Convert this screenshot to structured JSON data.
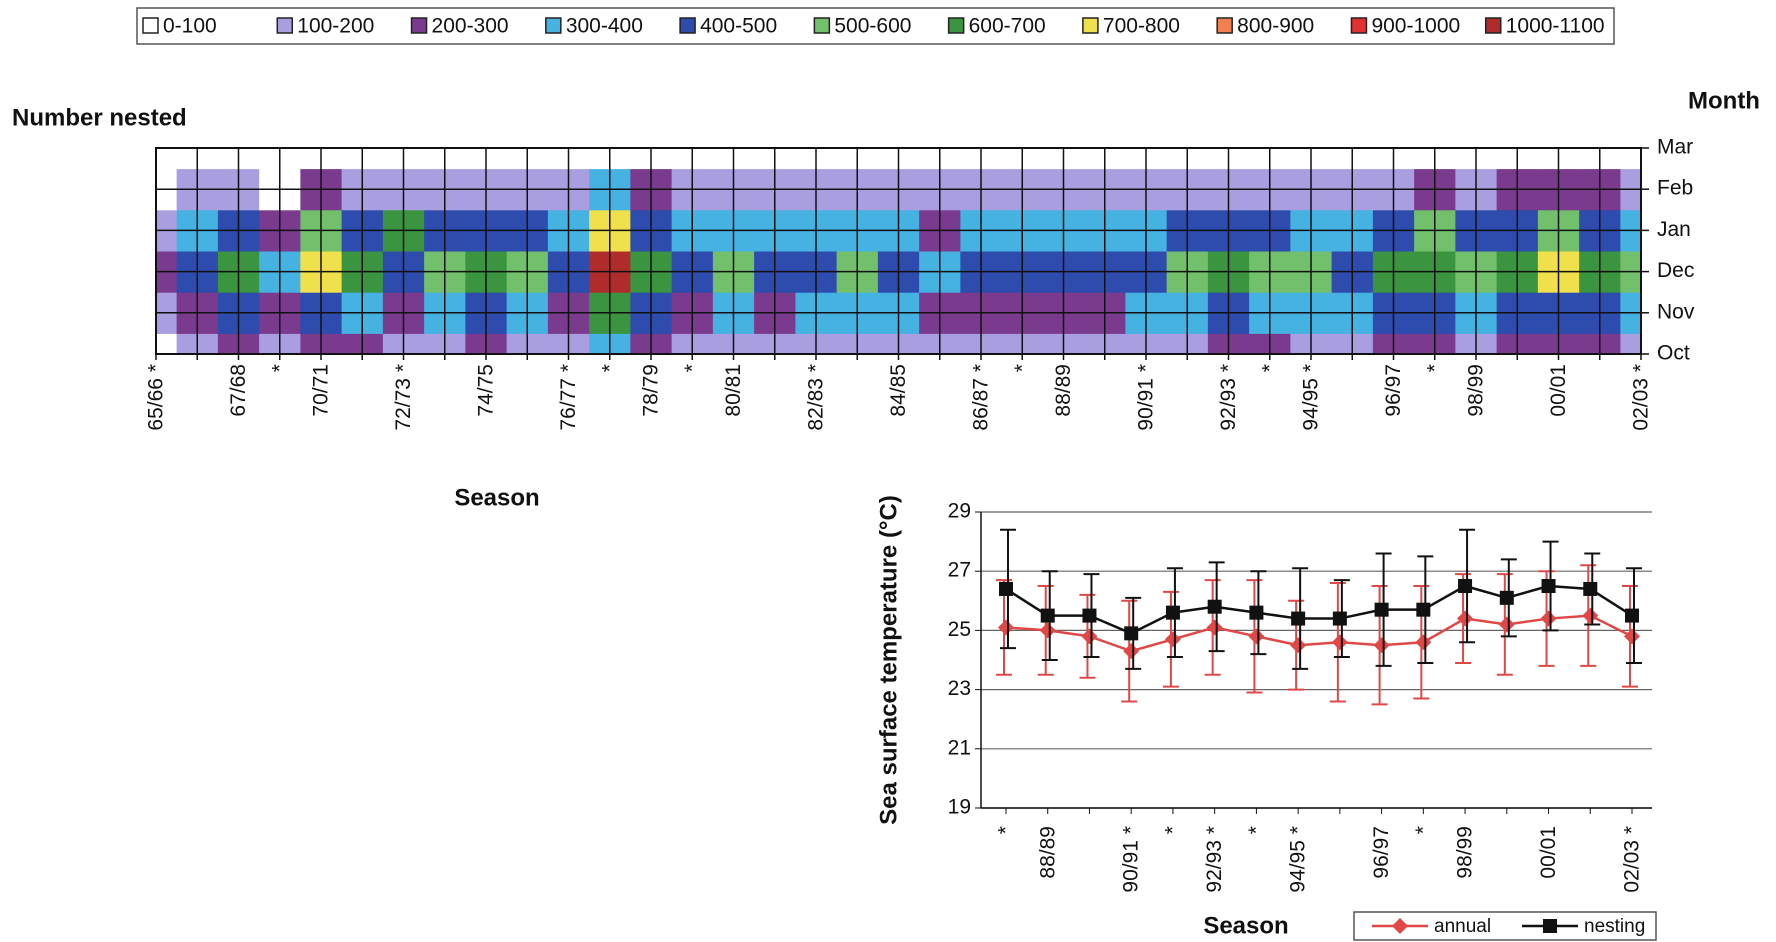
{
  "chart_data": [
    {
      "type": "contour",
      "title": "Number nested",
      "y_label": "Month",
      "x_label": "Season",
      "categories": [
        "65/66 *",
        null,
        "67/68",
        "*",
        "70/71",
        null,
        "72/73 *",
        null,
        "74/75",
        null,
        "76/77 *",
        "*",
        "78/79",
        "*",
        "80/81",
        null,
        "82/83 *",
        null,
        "84/85",
        null,
        "86/87 *",
        "*",
        "88/89",
        null,
        "90/91 *",
        null,
        "92/93 *",
        "*",
        "94/95 *",
        null,
        "96/97",
        "*",
        "98/99",
        null,
        "00/01",
        null,
        "02/03 *"
      ],
      "months": [
        "Oct",
        "Nov",
        "Dec",
        "Jan",
        "Feb",
        "Mar"
      ],
      "values": [
        [
          70,
          160,
          220,
          110,
          260,
          210,
          160,
          190,
          220,
          190,
          160,
          350,
          230,
          160,
          180,
          160,
          170,
          180,
          170,
          120,
          140,
          150,
          160,
          160,
          170,
          190,
          220,
          200,
          180,
          170,
          220,
          240,
          190,
          230,
          260,
          230,
          180
        ],
        [
          130,
          290,
          400,
          200,
          490,
          390,
          290,
          360,
          400,
          360,
          290,
          650,
          420,
          290,
          340,
          290,
          310,
          340,
          310,
          230,
          260,
          270,
          290,
          290,
          310,
          360,
          400,
          380,
          340,
          310,
          400,
          440,
          360,
          420,
          490,
          420,
          340
        ],
        [
          200,
          450,
          620,
          300,
          750,
          600,
          450,
          550,
          620,
          550,
          450,
          1000,
          650,
          450,
          520,
          450,
          480,
          520,
          480,
          350,
          400,
          420,
          450,
          450,
          480,
          550,
          620,
          580,
          520,
          480,
          620,
          680,
          550,
          650,
          750,
          650,
          520
        ],
        [
          150,
          340,
          470,
          230,
          560,
          450,
          620,
          410,
          470,
          410,
          340,
          750,
          490,
          340,
          390,
          340,
          360,
          390,
          360,
          260,
          300,
          320,
          340,
          340,
          360,
          410,
          470,
          440,
          390,
          360,
          470,
          510,
          410,
          490,
          560,
          490,
          390
        ],
        [
          60,
          140,
          190,
          90,
          230,
          180,
          140,
          170,
          190,
          170,
          140,
          300,
          200,
          140,
          160,
          140,
          140,
          160,
          140,
          110,
          120,
          130,
          140,
          140,
          140,
          170,
          190,
          170,
          160,
          140,
          190,
          200,
          170,
          200,
          230,
          200,
          160
        ],
        [
          20,
          20,
          20,
          20,
          20,
          20,
          20,
          20,
          20,
          20,
          20,
          20,
          20,
          20,
          20,
          20,
          20,
          20,
          20,
          20,
          20,
          20,
          20,
          20,
          20,
          20,
          20,
          20,
          20,
          20,
          20,
          20,
          20,
          20,
          20,
          20,
          20
        ]
      ],
      "bins": [
        0,
        100,
        200,
        300,
        400,
        500,
        600,
        700,
        800,
        900,
        1000,
        1100
      ],
      "levels": [
        {
          "name": "0-100",
          "color": "#ffffff"
        },
        {
          "name": "100-200",
          "color": "#a99ee0"
        },
        {
          "name": "200-300",
          "color": "#7a3a8e"
        },
        {
          "name": "300-400",
          "color": "#45b2e2"
        },
        {
          "name": "400-500",
          "color": "#2e4cae"
        },
        {
          "name": "500-600",
          "color": "#72bf6c"
        },
        {
          "name": "600-700",
          "color": "#3b9440"
        },
        {
          "name": "700-800",
          "color": "#f0e04c"
        },
        {
          "name": "800-900",
          "color": "#f08050"
        },
        {
          "name": "900-1000",
          "color": "#e03232"
        },
        {
          "name": "1000-1100",
          "color": "#b02c2c"
        }
      ]
    },
    {
      "type": "line",
      "y_label": "Sea surface temperature (°C)",
      "x_label": "Season",
      "categories": [
        "*",
        "88/89",
        null,
        "90/91 *",
        "*",
        "92/93 *",
        "*",
        "94/95 *",
        null,
        "96/97",
        "*",
        "98/99",
        null,
        "00/01",
        null,
        "02/03 *"
      ],
      "series": [
        {
          "name": "annual",
          "color": "#e04848",
          "marker": "diamond",
          "values": [
            25.1,
            25.0,
            24.8,
            24.3,
            24.7,
            25.1,
            24.8,
            24.5,
            24.6,
            24.5,
            24.6,
            25.4,
            25.2,
            25.4,
            25.5,
            24.8
          ],
          "errors": [
            1.6,
            1.5,
            1.4,
            1.7,
            1.6,
            1.6,
            1.9,
            1.5,
            2.0,
            2.0,
            1.9,
            1.5,
            1.7,
            1.6,
            1.7,
            1.7
          ]
        },
        {
          "name": "nesting",
          "color": "#111111",
          "marker": "square",
          "values": [
            26.4,
            25.5,
            25.5,
            24.9,
            25.6,
            25.8,
            25.6,
            25.4,
            25.4,
            25.7,
            25.7,
            26.5,
            26.1,
            26.5,
            26.4,
            25.5
          ],
          "errors": [
            2.0,
            1.5,
            1.4,
            1.2,
            1.5,
            1.5,
            1.4,
            1.7,
            1.3,
            1.9,
            1.8,
            1.9,
            1.3,
            1.5,
            1.2,
            1.6
          ]
        }
      ],
      "ylim": [
        19,
        29
      ],
      "yticks": [
        19,
        21,
        23,
        25,
        27,
        29
      ],
      "grid": true
    }
  ]
}
